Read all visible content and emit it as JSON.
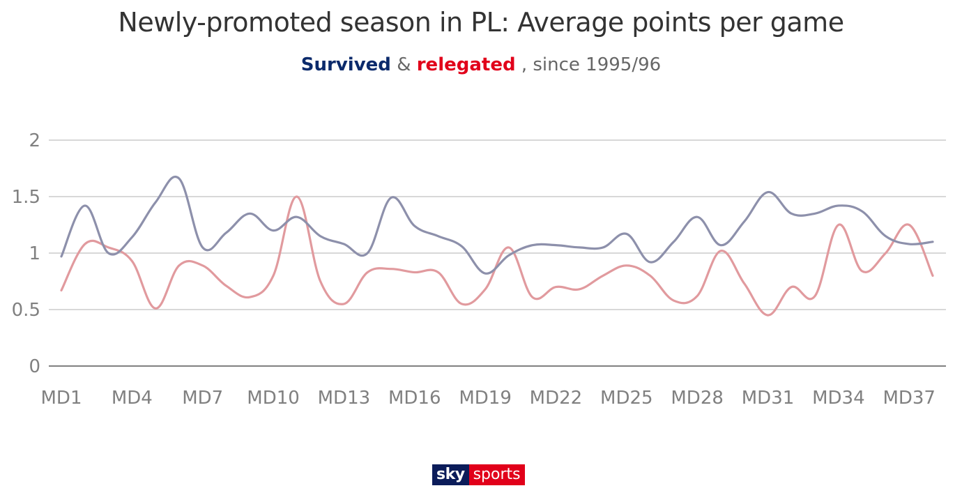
{
  "title": "Newly-promoted season in PL: Average points per game",
  "subtitle": {
    "survived_text": "Survived",
    "amp": "&",
    "relegated_text": "relegated",
    "suffix": ", since 1995/96"
  },
  "logo": {
    "sky": "sky",
    "sports": "sports"
  },
  "colors": {
    "survived": "#8d90ab",
    "relegated": "#e19a9e",
    "survived_label": "#0b2a6b",
    "relegated_label": "#e1001a",
    "grid": "#cccccc",
    "axis": "#808080"
  },
  "chart_data": {
    "type": "line",
    "title": "Newly-promoted season in PL: Average points per game",
    "xlabel": "",
    "ylabel": "",
    "ylim": [
      0,
      2
    ],
    "yticks": [
      "0",
      "0.5",
      "1",
      "1.5",
      "2"
    ],
    "x": [
      "MD1",
      "MD2",
      "MD3",
      "MD4",
      "MD5",
      "MD6",
      "MD7",
      "MD8",
      "MD9",
      "MD10",
      "MD11",
      "MD12",
      "MD13",
      "MD14",
      "MD15",
      "MD16",
      "MD17",
      "MD18",
      "MD19",
      "MD20",
      "MD21",
      "MD22",
      "MD23",
      "MD24",
      "MD25",
      "MD26",
      "MD27",
      "MD28",
      "MD29",
      "MD30",
      "MD31",
      "MD32",
      "MD33",
      "MD34",
      "MD35",
      "MD36",
      "MD37",
      "MD38"
    ],
    "xtick_labels": [
      "MD1",
      "MD4",
      "MD7",
      "MD10",
      "MD13",
      "MD16",
      "MD19",
      "MD22",
      "MD25",
      "MD28",
      "MD31",
      "MD34",
      "MD37"
    ],
    "grid": true,
    "legend": "none",
    "series": [
      {
        "name": "Survived",
        "color": "#8d90ab",
        "values": [
          0.97,
          1.42,
          1.0,
          1.14,
          1.45,
          1.66,
          1.05,
          1.18,
          1.35,
          1.2,
          1.32,
          1.15,
          1.08,
          1.0,
          1.49,
          1.24,
          1.15,
          1.06,
          0.82,
          0.98,
          1.07,
          1.07,
          1.05,
          1.05,
          1.17,
          0.92,
          1.1,
          1.32,
          1.07,
          1.28,
          1.54,
          1.35,
          1.35,
          1.42,
          1.37,
          1.15,
          1.08,
          1.1
        ]
      },
      {
        "name": "relegated",
        "color": "#e19a9e",
        "values": [
          0.67,
          1.08,
          1.05,
          0.93,
          0.51,
          0.89,
          0.89,
          0.71,
          0.61,
          0.8,
          1.5,
          0.75,
          0.55,
          0.83,
          0.86,
          0.83,
          0.83,
          0.55,
          0.68,
          1.05,
          0.61,
          0.7,
          0.68,
          0.8,
          0.89,
          0.8,
          0.58,
          0.62,
          1.02,
          0.73,
          0.45,
          0.7,
          0.62,
          1.25,
          0.84,
          1.0,
          1.25,
          0.8
        ]
      }
    ]
  }
}
